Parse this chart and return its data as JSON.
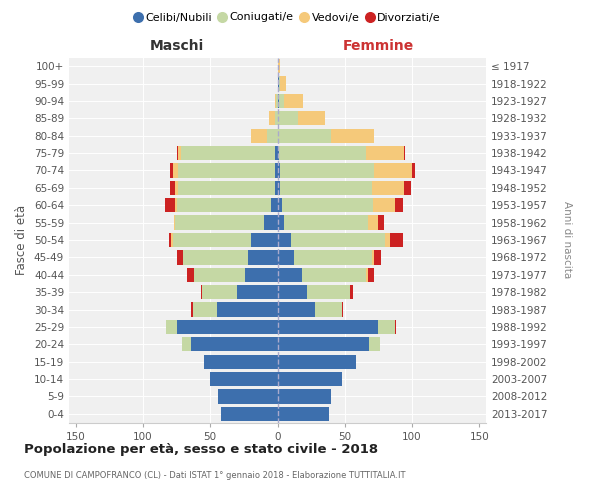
{
  "age_groups": [
    "0-4",
    "5-9",
    "10-14",
    "15-19",
    "20-24",
    "25-29",
    "30-34",
    "35-39",
    "40-44",
    "45-49",
    "50-54",
    "55-59",
    "60-64",
    "65-69",
    "70-74",
    "75-79",
    "80-84",
    "85-89",
    "90-94",
    "95-99",
    "100+"
  ],
  "birth_years": [
    "2013-2017",
    "2008-2012",
    "2003-2007",
    "1998-2002",
    "1993-1997",
    "1988-1992",
    "1983-1987",
    "1978-1982",
    "1973-1977",
    "1968-1972",
    "1963-1967",
    "1958-1962",
    "1953-1957",
    "1948-1952",
    "1943-1947",
    "1938-1942",
    "1933-1937",
    "1928-1932",
    "1923-1927",
    "1918-1922",
    "≤ 1917"
  ],
  "colors": {
    "celibi": "#3d6fad",
    "coniugati": "#c5d8a4",
    "vedovi": "#f5c97a",
    "divorziati": "#cc2222"
  },
  "maschi": {
    "celibi": [
      42,
      44,
      50,
      55,
      64,
      75,
      45,
      30,
      24,
      22,
      20,
      10,
      5,
      2,
      2,
      2,
      0,
      0,
      0,
      0,
      0
    ],
    "coniugati": [
      0,
      0,
      0,
      0,
      7,
      8,
      18,
      26,
      38,
      48,
      58,
      66,
      70,
      72,
      72,
      70,
      8,
      2,
      1,
      0,
      0
    ],
    "vedovi": [
      0,
      0,
      0,
      0,
      0,
      0,
      0,
      0,
      0,
      0,
      1,
      1,
      1,
      2,
      4,
      2,
      12,
      4,
      1,
      0,
      0
    ],
    "divorziati": [
      0,
      0,
      0,
      0,
      0,
      0,
      1,
      1,
      5,
      5,
      2,
      0,
      8,
      4,
      2,
      1,
      0,
      0,
      0,
      0,
      0
    ]
  },
  "femmine": {
    "celibi": [
      38,
      40,
      48,
      58,
      68,
      75,
      28,
      22,
      18,
      12,
      10,
      5,
      3,
      2,
      2,
      1,
      0,
      0,
      1,
      1,
      0
    ],
    "coniugati": [
      0,
      0,
      0,
      0,
      8,
      12,
      20,
      32,
      48,
      58,
      70,
      62,
      68,
      68,
      70,
      65,
      40,
      15,
      4,
      1,
      0
    ],
    "vedovi": [
      0,
      0,
      0,
      0,
      0,
      0,
      0,
      0,
      1,
      2,
      4,
      8,
      16,
      24,
      28,
      28,
      32,
      20,
      14,
      4,
      2
    ],
    "divorziati": [
      0,
      0,
      0,
      0,
      0,
      1,
      1,
      2,
      5,
      5,
      9,
      4,
      6,
      5,
      2,
      1,
      0,
      0,
      0,
      0,
      0
    ]
  },
  "title": "Popolazione per età, sesso e stato civile - 2018",
  "subtitle": "COMUNE DI CAMPOFRANCO (CL) - Dati ISTAT 1° gennaio 2018 - Elaborazione TUTTITALIA.IT",
  "label_maschi": "Maschi",
  "label_femmine": "Femmine",
  "ylabel_left": "Fasce di età",
  "ylabel_right": "Anni di nascita",
  "xlim": 155,
  "legend_labels": [
    "Celibi/Nubili",
    "Coniugati/e",
    "Vedovi/e",
    "Divorziati/e"
  ],
  "bg_color": "#f0f0f0",
  "grid_color": "#ffffff"
}
